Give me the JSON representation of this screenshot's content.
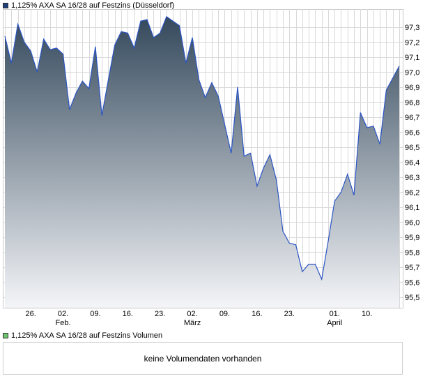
{
  "colors": {
    "price_swatch": "#1f3f7a",
    "volume_swatch": "#6fc36f",
    "line": "#2b54c4",
    "fill_top": "#34495c",
    "fill_bottom": "#f4f5f8",
    "grid": "#d9d9d9",
    "border": "#c8c8c8"
  },
  "legend": {
    "price_label": "1,125% AXA SA 16/28 auf Festzins (Düsseldorf)",
    "volume_label": "1,125% AXA SA 16/28 auf Festzins Volumen"
  },
  "volume_panel": {
    "message": "keine Volumendaten vorhanden"
  },
  "chart_data": {
    "type": "area",
    "title": "1,125% AXA SA 16/28 auf Festzins (Düsseldorf)",
    "xlabel": "",
    "ylabel": "",
    "ylim": [
      95.43,
      97.42
    ],
    "yticks": [
      "97,3",
      "97,2",
      "97,1",
      "97,0",
      "96,9",
      "96,8",
      "96,7",
      "96,6",
      "96,5",
      "96,4",
      "96,3",
      "96,2",
      "96,1",
      "96,0",
      "95,9",
      "95,8",
      "95,7",
      "95,6",
      "95,5"
    ],
    "ytick_values": [
      97.3,
      97.2,
      97.1,
      97.0,
      96.9,
      96.8,
      96.7,
      96.6,
      96.5,
      96.4,
      96.3,
      96.2,
      96.1,
      96.0,
      95.9,
      95.8,
      95.7,
      95.6,
      95.5
    ],
    "xticks": [
      {
        "label": "26.",
        "month": "",
        "index": 4
      },
      {
        "label": "02.",
        "month": "Feb.",
        "index": 9
      },
      {
        "label": "09.",
        "month": "",
        "index": 14
      },
      {
        "label": "16.",
        "month": "",
        "index": 19
      },
      {
        "label": "23.",
        "month": "",
        "index": 24
      },
      {
        "label": "02.",
        "month": "März",
        "index": 29
      },
      {
        "label": "09.",
        "month": "",
        "index": 34
      },
      {
        "label": "16.",
        "month": "",
        "index": 39
      },
      {
        "label": "23.",
        "month": "",
        "index": 44
      },
      {
        "label": "01.",
        "month": "April",
        "index": 51
      },
      {
        "label": "10.",
        "month": "",
        "index": 56
      }
    ],
    "grid": true,
    "series": [
      {
        "name": "1,125% AXA SA 16/28 auf Festzins (Düsseldorf)",
        "values": [
          97.24,
          97.06,
          97.32,
          97.2,
          97.14,
          97.0,
          97.22,
          97.15,
          97.16,
          97.12,
          96.75,
          96.86,
          96.94,
          96.89,
          97.17,
          96.71,
          96.95,
          97.18,
          97.27,
          97.26,
          97.16,
          97.34,
          97.35,
          97.23,
          97.26,
          97.37,
          97.34,
          97.31,
          97.06,
          97.23,
          96.95,
          96.83,
          96.93,
          96.84,
          96.65,
          96.46,
          96.9,
          96.44,
          96.46,
          96.24,
          96.36,
          96.45,
          96.28,
          95.94,
          95.86,
          95.85,
          95.67,
          95.72,
          95.72,
          95.62,
          95.87,
          96.14,
          96.2,
          96.32,
          96.18,
          96.73,
          96.63,
          96.64,
          96.52,
          96.88,
          96.96,
          97.04
        ]
      }
    ]
  }
}
